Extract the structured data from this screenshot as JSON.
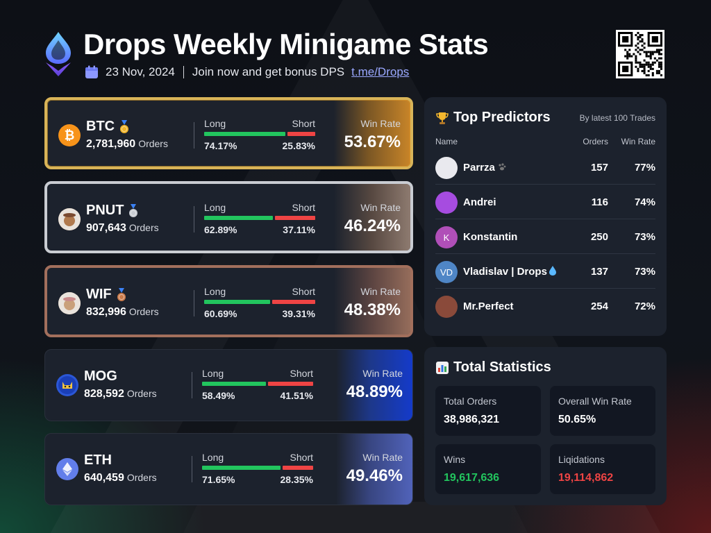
{
  "header": {
    "title": "Drops Weekly Minigame Stats",
    "date": "23 Nov, 2024",
    "promo": "Join now and get bonus DPS",
    "link": "t.me/Drops"
  },
  "coins": [
    {
      "name": "BTC",
      "medal": "gold",
      "orders": "2,781,960",
      "orders_label": "Orders",
      "long_label": "Long",
      "short_label": "Short",
      "long_pct": 74.17,
      "long": "74.17%",
      "short": "25.83%",
      "win_rate_label": "Win Rate",
      "win_rate": "53.67%",
      "icon": "bitcoin-icon",
      "color": "#f7931a"
    },
    {
      "name": "PNUT",
      "medal": "silver",
      "orders": "907,643",
      "orders_label": "Orders",
      "long_label": "Long",
      "short_label": "Short",
      "long_pct": 62.89,
      "long": "62.89%",
      "short": "37.11%",
      "win_rate_label": "Win Rate",
      "win_rate": "46.24%",
      "icon": "squirrel-icon",
      "color": "#b07a4e"
    },
    {
      "name": "WIF",
      "medal": "bronze",
      "orders": "832,996",
      "orders_label": "Orders",
      "long_label": "Long",
      "short_label": "Short",
      "long_pct": 60.69,
      "long": "60.69%",
      "short": "39.31%",
      "win_rate_label": "Win Rate",
      "win_rate": "48.38%",
      "icon": "dog-hat-icon",
      "color": "#c9a07a"
    },
    {
      "name": "MOG",
      "medal": "",
      "orders": "828,592",
      "orders_label": "Orders",
      "long_label": "Long",
      "short_label": "Short",
      "long_pct": 58.49,
      "long": "58.49%",
      "short": "41.51%",
      "win_rate_label": "Win Rate",
      "win_rate": "48.89%",
      "icon": "cat-icon",
      "color": "#2b57d6"
    },
    {
      "name": "ETH",
      "medal": "",
      "orders": "640,459",
      "orders_label": "Orders",
      "long_label": "Long",
      "short_label": "Short",
      "long_pct": 71.65,
      "long": "71.65%",
      "short": "28.35%",
      "win_rate_label": "Win Rate",
      "win_rate": "49.46%",
      "icon": "ethereum-icon",
      "color": "#627eea"
    }
  ],
  "top_predictors": {
    "title": "Top Predictors",
    "subtitle": "By latest 100 Trades",
    "col_name": "Name",
    "col_orders": "Orders",
    "col_rate": "Win Rate",
    "rows": [
      {
        "name": "Parrza",
        "orders": "157",
        "rate": "77%",
        "initials": "",
        "color": "#e9e9ee"
      },
      {
        "name": "Andrei",
        "orders": "116",
        "rate": "74%",
        "initials": "",
        "color": "#a64ce0"
      },
      {
        "name": "Konstantin",
        "orders": "250",
        "rate": "73%",
        "initials": "K",
        "color": "#b04fb8"
      },
      {
        "name": "Vladislav | Drops",
        "orders": "137",
        "rate": "73%",
        "initials": "VD",
        "color": "#4f86c6"
      },
      {
        "name": "Mr.Perfect",
        "orders": "254",
        "rate": "72%",
        "initials": "",
        "color": "#8a4a3a"
      }
    ]
  },
  "total_stats": {
    "title": "Total Statistics",
    "total_orders_label": "Total Orders",
    "total_orders": "38,986,321",
    "win_rate_label": "Overall Win Rate",
    "win_rate": "50.65%",
    "wins_label": "Wins",
    "wins": "19,617,636",
    "liq_label": "Liqidations",
    "liq": "19,114,862"
  }
}
